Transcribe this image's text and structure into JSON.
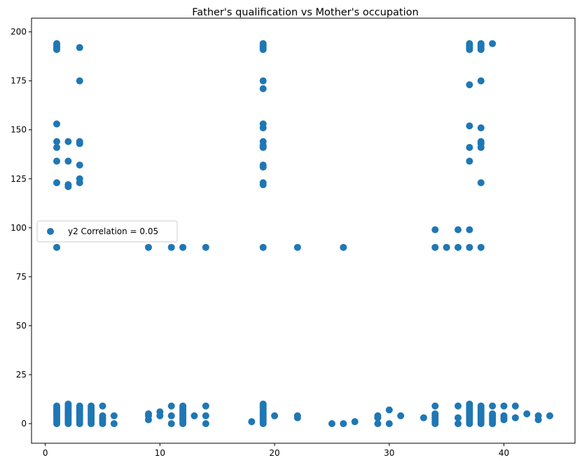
{
  "chart_data": {
    "type": "scatter",
    "title": "Father's qualification vs Mother's occupation",
    "xlabel": "",
    "ylabel": "",
    "xlim": [
      -1.2,
      46.2
    ],
    "ylim": [
      -10,
      207
    ],
    "xticks": [
      0,
      10,
      20,
      30,
      40
    ],
    "yticks": [
      0,
      25,
      50,
      75,
      100,
      125,
      150,
      175,
      200
    ],
    "grid": false,
    "legend_position": "center-left",
    "series": [
      {
        "name": "y2 Correlation = 0.05",
        "color": "#1f77b4",
        "points": [
          [
            1,
            0
          ],
          [
            1,
            1
          ],
          [
            1,
            2
          ],
          [
            1,
            3
          ],
          [
            1,
            4
          ],
          [
            1,
            5
          ],
          [
            1,
            6
          ],
          [
            1,
            7
          ],
          [
            1,
            8
          ],
          [
            1,
            9
          ],
          [
            1,
            90
          ],
          [
            1,
            123
          ],
          [
            1,
            134
          ],
          [
            1,
            141
          ],
          [
            1,
            144
          ],
          [
            1,
            153
          ],
          [
            1,
            191
          ],
          [
            1,
            192
          ],
          [
            1,
            193
          ],
          [
            1,
            194
          ],
          [
            2,
            0
          ],
          [
            2,
            1
          ],
          [
            2,
            2
          ],
          [
            2,
            3
          ],
          [
            2,
            4
          ],
          [
            2,
            5
          ],
          [
            2,
            6
          ],
          [
            2,
            7
          ],
          [
            2,
            8
          ],
          [
            2,
            9
          ],
          [
            2,
            10
          ],
          [
            2,
            121
          ],
          [
            2,
            122
          ],
          [
            2,
            134
          ],
          [
            2,
            144
          ],
          [
            3,
            0
          ],
          [
            3,
            1
          ],
          [
            3,
            2
          ],
          [
            3,
            3
          ],
          [
            3,
            4
          ],
          [
            3,
            5
          ],
          [
            3,
            6
          ],
          [
            3,
            7
          ],
          [
            3,
            8
          ],
          [
            3,
            9
          ],
          [
            3,
            123
          ],
          [
            3,
            125
          ],
          [
            3,
            132
          ],
          [
            3,
            143
          ],
          [
            3,
            144
          ],
          [
            3,
            175
          ],
          [
            3,
            192
          ],
          [
            4,
            0
          ],
          [
            4,
            1
          ],
          [
            4,
            2
          ],
          [
            4,
            3
          ],
          [
            4,
            4
          ],
          [
            4,
            5
          ],
          [
            4,
            6
          ],
          [
            4,
            7
          ],
          [
            4,
            8
          ],
          [
            4,
            9
          ],
          [
            5,
            0
          ],
          [
            5,
            1
          ],
          [
            5,
            2
          ],
          [
            5,
            3
          ],
          [
            5,
            4
          ],
          [
            5,
            9
          ],
          [
            6,
            0
          ],
          [
            6,
            4
          ],
          [
            9,
            2
          ],
          [
            9,
            4
          ],
          [
            9,
            5
          ],
          [
            9,
            90
          ],
          [
            10,
            4
          ],
          [
            10,
            6
          ],
          [
            11,
            0
          ],
          [
            11,
            4
          ],
          [
            11,
            9
          ],
          [
            11,
            90
          ],
          [
            12,
            0
          ],
          [
            12,
            1
          ],
          [
            12,
            2
          ],
          [
            12,
            3
          ],
          [
            12,
            4
          ],
          [
            12,
            5
          ],
          [
            12,
            6
          ],
          [
            12,
            7
          ],
          [
            12,
            8
          ],
          [
            12,
            9
          ],
          [
            12,
            90
          ],
          [
            13,
            4
          ],
          [
            14,
            0
          ],
          [
            14,
            4
          ],
          [
            14,
            9
          ],
          [
            14,
            90
          ],
          [
            18,
            1
          ],
          [
            19,
            0
          ],
          [
            19,
            1
          ],
          [
            19,
            2
          ],
          [
            19,
            3
          ],
          [
            19,
            4
          ],
          [
            19,
            5
          ],
          [
            19,
            6
          ],
          [
            19,
            7
          ],
          [
            19,
            8
          ],
          [
            19,
            9
          ],
          [
            19,
            10
          ],
          [
            19,
            90
          ],
          [
            19,
            122
          ],
          [
            19,
            123
          ],
          [
            19,
            131
          ],
          [
            19,
            132
          ],
          [
            19,
            141
          ],
          [
            19,
            142
          ],
          [
            19,
            144
          ],
          [
            19,
            151
          ],
          [
            19,
            153
          ],
          [
            19,
            171
          ],
          [
            19,
            175
          ],
          [
            19,
            191
          ],
          [
            19,
            192
          ],
          [
            19,
            193
          ],
          [
            19,
            194
          ],
          [
            20,
            4
          ],
          [
            22,
            3
          ],
          [
            22,
            4
          ],
          [
            22,
            90
          ],
          [
            25,
            0
          ],
          [
            26,
            0
          ],
          [
            26,
            90
          ],
          [
            27,
            1
          ],
          [
            29,
            0
          ],
          [
            29,
            3
          ],
          [
            29,
            4
          ],
          [
            30,
            0
          ],
          [
            30,
            7
          ],
          [
            31,
            4
          ],
          [
            33,
            3
          ],
          [
            34,
            0
          ],
          [
            34,
            1
          ],
          [
            34,
            2
          ],
          [
            34,
            3
          ],
          [
            34,
            4
          ],
          [
            34,
            5
          ],
          [
            34,
            9
          ],
          [
            34,
            90
          ],
          [
            34,
            99
          ],
          [
            35,
            90
          ],
          [
            36,
            0
          ],
          [
            36,
            3
          ],
          [
            36,
            9
          ],
          [
            36,
            90
          ],
          [
            36,
            99
          ],
          [
            37,
            0
          ],
          [
            37,
            1
          ],
          [
            37,
            2
          ],
          [
            37,
            3
          ],
          [
            37,
            4
          ],
          [
            37,
            5
          ],
          [
            37,
            6
          ],
          [
            37,
            7
          ],
          [
            37,
            8
          ],
          [
            37,
            9
          ],
          [
            37,
            10
          ],
          [
            37,
            90
          ],
          [
            37,
            99
          ],
          [
            37,
            134
          ],
          [
            37,
            141
          ],
          [
            37,
            152
          ],
          [
            37,
            173
          ],
          [
            37,
            191
          ],
          [
            37,
            192
          ],
          [
            37,
            193
          ],
          [
            37,
            194
          ],
          [
            38,
            0
          ],
          [
            38,
            1
          ],
          [
            38,
            2
          ],
          [
            38,
            3
          ],
          [
            38,
            4
          ],
          [
            38,
            5
          ],
          [
            38,
            6
          ],
          [
            38,
            7
          ],
          [
            38,
            8
          ],
          [
            38,
            9
          ],
          [
            38,
            90
          ],
          [
            38,
            123
          ],
          [
            38,
            141
          ],
          [
            38,
            143
          ],
          [
            38,
            144
          ],
          [
            38,
            151
          ],
          [
            38,
            175
          ],
          [
            38,
            191
          ],
          [
            38,
            192
          ],
          [
            38,
            193
          ],
          [
            38,
            194
          ],
          [
            39,
            0
          ],
          [
            39,
            1
          ],
          [
            39,
            2
          ],
          [
            39,
            3
          ],
          [
            39,
            4
          ],
          [
            39,
            5
          ],
          [
            39,
            9
          ],
          [
            39,
            194
          ],
          [
            40,
            2
          ],
          [
            40,
            3
          ],
          [
            40,
            4
          ],
          [
            40,
            9
          ],
          [
            41,
            3
          ],
          [
            41,
            9
          ],
          [
            42,
            5
          ],
          [
            43,
            2
          ],
          [
            43,
            4
          ],
          [
            44,
            4
          ]
        ]
      }
    ]
  }
}
